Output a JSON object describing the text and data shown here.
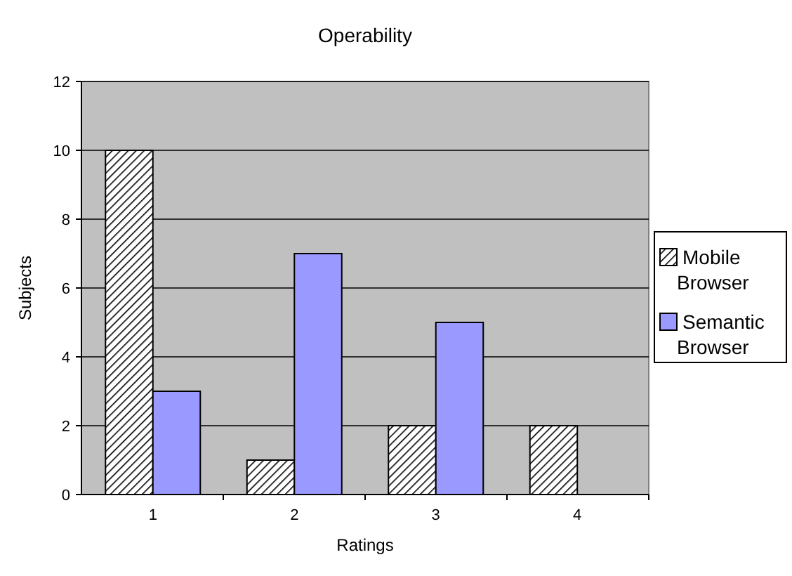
{
  "chart_data": {
    "type": "bar",
    "title": "Operability",
    "xlabel": "Ratings",
    "ylabel": "Subjects",
    "categories": [
      "1",
      "2",
      "3",
      "4"
    ],
    "series": [
      {
        "name": "Mobile Browser",
        "color": "#000000",
        "values": [
          10,
          1,
          2,
          2
        ]
      },
      {
        "name": "Semantic Browser",
        "color": "#9999ff",
        "values": [
          3,
          7,
          5,
          0
        ]
      }
    ],
    "ylim": [
      0,
      12
    ],
    "yticks": [
      0,
      2,
      4,
      6,
      8,
      10,
      12
    ],
    "grid": "y",
    "legend": "right"
  }
}
